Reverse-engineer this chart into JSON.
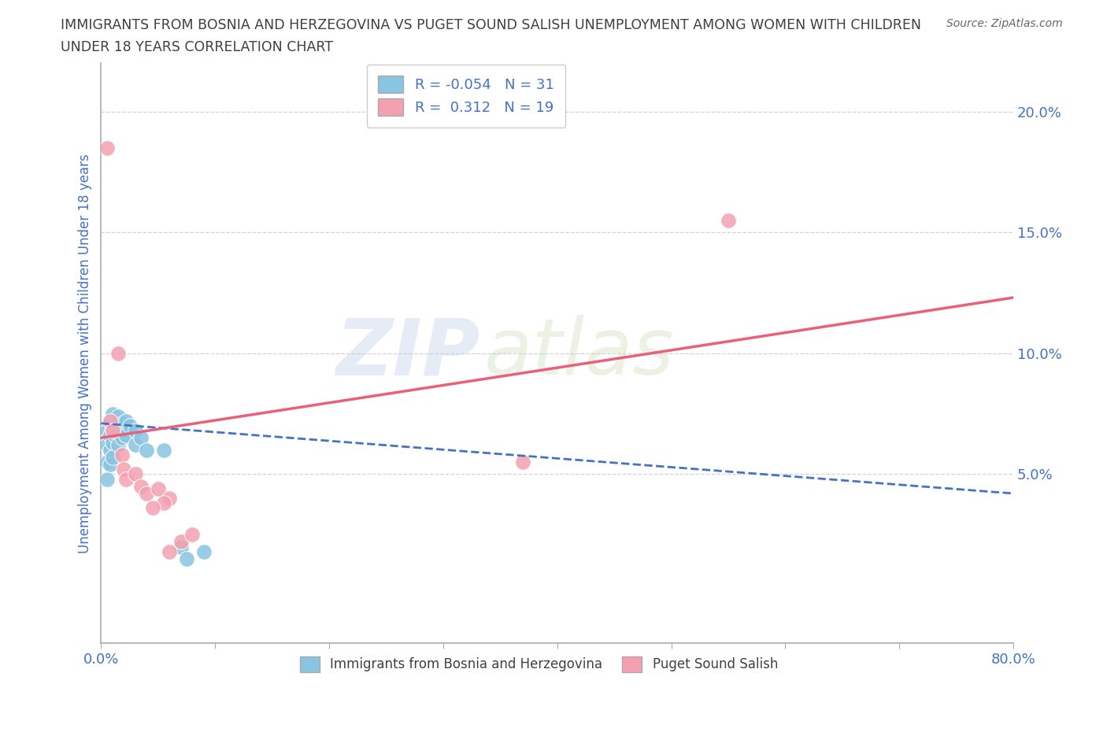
{
  "title_line1": "IMMIGRANTS FROM BOSNIA AND HERZEGOVINA VS PUGET SOUND SALISH UNEMPLOYMENT AMONG WOMEN WITH CHILDREN",
  "title_line2": "UNDER 18 YEARS CORRELATION CHART",
  "source_text": "Source: ZipAtlas.com",
  "ylabel": "Unemployment Among Women with Children Under 18 years",
  "xlim": [
    0.0,
    0.8
  ],
  "ylim": [
    -0.02,
    0.22
  ],
  "yticks": [
    0.05,
    0.1,
    0.15,
    0.2
  ],
  "ytick_labels": [
    "5.0%",
    "10.0%",
    "15.0%",
    "20.0%"
  ],
  "xticks": [
    0.0,
    0.1,
    0.2,
    0.3,
    0.4,
    0.5,
    0.6,
    0.7,
    0.8
  ],
  "xlabels_ends": [
    "0.0%",
    "80.0%"
  ],
  "blue_color": "#89C4E1",
  "pink_color": "#F4A0B0",
  "blue_line_color": "#4472C4",
  "pink_line_color": "#E8607A",
  "blue_R": -0.054,
  "blue_N": 31,
  "pink_R": 0.312,
  "pink_N": 19,
  "watermark_zip": "ZIP",
  "watermark_atlas": "atlas",
  "blue_dots": [
    [
      0.005,
      0.068
    ],
    [
      0.005,
      0.062
    ],
    [
      0.005,
      0.055
    ],
    [
      0.005,
      0.048
    ],
    [
      0.008,
      0.072
    ],
    [
      0.008,
      0.066
    ],
    [
      0.008,
      0.06
    ],
    [
      0.008,
      0.054
    ],
    [
      0.01,
      0.075
    ],
    [
      0.01,
      0.069
    ],
    [
      0.01,
      0.063
    ],
    [
      0.01,
      0.057
    ],
    [
      0.012,
      0.072
    ],
    [
      0.012,
      0.066
    ],
    [
      0.015,
      0.074
    ],
    [
      0.015,
      0.068
    ],
    [
      0.015,
      0.062
    ],
    [
      0.018,
      0.071
    ],
    [
      0.018,
      0.065
    ],
    [
      0.02,
      0.068
    ],
    [
      0.022,
      0.072
    ],
    [
      0.022,
      0.066
    ],
    [
      0.025,
      0.07
    ],
    [
      0.03,
      0.068
    ],
    [
      0.03,
      0.062
    ],
    [
      0.035,
      0.065
    ],
    [
      0.04,
      0.06
    ],
    [
      0.055,
      0.06
    ],
    [
      0.07,
      0.02
    ],
    [
      0.075,
      0.015
    ],
    [
      0.09,
      0.018
    ]
  ],
  "pink_dots": [
    [
      0.005,
      0.185
    ],
    [
      0.008,
      0.072
    ],
    [
      0.01,
      0.068
    ],
    [
      0.015,
      0.1
    ],
    [
      0.018,
      0.058
    ],
    [
      0.02,
      0.052
    ],
    [
      0.022,
      0.048
    ],
    [
      0.03,
      0.05
    ],
    [
      0.035,
      0.045
    ],
    [
      0.04,
      0.042
    ],
    [
      0.05,
      0.044
    ],
    [
      0.06,
      0.04
    ],
    [
      0.37,
      0.055
    ],
    [
      0.55,
      0.155
    ],
    [
      0.06,
      0.018
    ],
    [
      0.07,
      0.022
    ],
    [
      0.08,
      0.025
    ],
    [
      0.055,
      0.038
    ],
    [
      0.045,
      0.036
    ]
  ],
  "blue_trend_x": [
    0.0,
    0.8
  ],
  "blue_trend_y": [
    0.071,
    0.042
  ],
  "pink_trend_x": [
    0.0,
    0.8
  ],
  "pink_trend_y": [
    0.065,
    0.123
  ],
  "grid_color": "#C8C8C8",
  "background_color": "#FFFFFF",
  "title_color": "#404040",
  "axis_label_color": "#4472C4",
  "tick_label_color": "#4472C4"
}
